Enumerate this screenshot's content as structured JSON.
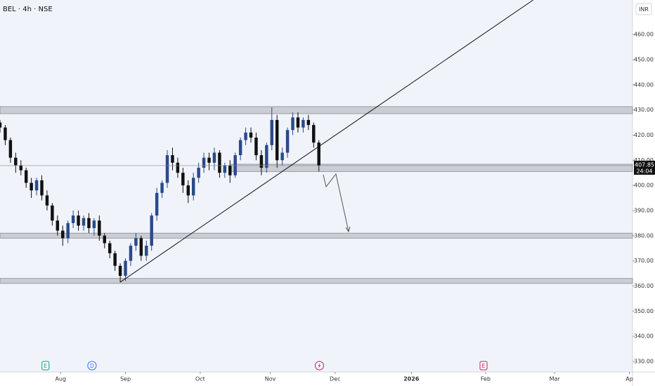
{
  "chart_data": {
    "type": "candlestick",
    "title": "BEL · 4h · NSE",
    "currency": "INR",
    "countdown": "24:04",
    "x": [
      0,
      1,
      2,
      3,
      4,
      5,
      6,
      7,
      8,
      9,
      10,
      11,
      12,
      13,
      14,
      15,
      16,
      17,
      18,
      19,
      20,
      21,
      22,
      23,
      24,
      25,
      26,
      27,
      28,
      29,
      30,
      31,
      32,
      33,
      34,
      35,
      36,
      37,
      38,
      39,
      40,
      41,
      42,
      43,
      44,
      45,
      46,
      47,
      48,
      49,
      50,
      51,
      52,
      53,
      54,
      55,
      56,
      57,
      58,
      59,
      60,
      61
    ],
    "open": [
      425,
      423,
      418,
      411,
      408,
      406,
      401,
      398,
      402,
      396,
      392,
      386,
      382,
      379,
      385,
      388,
      384,
      387,
      383,
      386,
      380,
      377,
      373,
      368,
      364,
      370,
      376,
      379,
      372,
      376,
      388,
      397,
      401,
      412,
      409,
      405,
      400,
      396,
      403,
      407,
      411,
      409,
      413,
      405,
      408,
      404,
      412,
      418,
      421,
      419,
      412,
      407,
      416,
      426,
      410,
      413,
      422,
      427,
      423,
      426,
      424,
      417
    ],
    "high": [
      426,
      424,
      419,
      413,
      410,
      407,
      403,
      403,
      404,
      398,
      393,
      388,
      384,
      386,
      390,
      390,
      388,
      389,
      387,
      388,
      381,
      378,
      374,
      369,
      371,
      377,
      381,
      380,
      378,
      389,
      399,
      402,
      414,
      415,
      411,
      407,
      402,
      405,
      409,
      413,
      413,
      415,
      414,
      409,
      410,
      413,
      419,
      423,
      423,
      421,
      414,
      417,
      431,
      428,
      415,
      423,
      429,
      429,
      427,
      428,
      425,
      418
    ],
    "low": [
      421,
      416,
      409,
      405,
      404,
      399,
      395,
      396,
      394,
      390,
      384,
      380,
      376,
      377,
      383,
      382,
      382,
      381,
      380,
      378,
      375,
      371,
      366,
      361.5,
      362,
      368,
      374,
      370,
      370,
      374,
      386,
      395,
      399,
      406,
      403,
      397,
      393,
      394,
      401,
      405,
      406,
      406,
      403,
      403,
      401,
      403,
      410,
      416,
      417,
      410,
      404,
      405,
      414,
      407,
      408,
      411,
      420,
      421,
      421,
      422,
      415,
      405.5
    ],
    "close": [
      423,
      418,
      411,
      408,
      406,
      401,
      398,
      402,
      396,
      392,
      386,
      382,
      379,
      385,
      388,
      384,
      387,
      383,
      386,
      380,
      377,
      373,
      368,
      364,
      370,
      376,
      379,
      372,
      376,
      388,
      397,
      401,
      412,
      409,
      405,
      400,
      396,
      403,
      407,
      411,
      409,
      413,
      405,
      408,
      404,
      412,
      418,
      421,
      419,
      412,
      407,
      416,
      426,
      410,
      413,
      422,
      427,
      423,
      426,
      424,
      417,
      407.85
    ],
    "up_color": "#2a4a8a",
    "down_color": "#111111",
    "xlim": [
      0,
      121
    ],
    "ylim": [
      325.8,
      473.7
    ],
    "xticks": [
      {
        "value": 11.6,
        "label": "Aug"
      },
      {
        "value": 24,
        "label": "Sep"
      },
      {
        "value": 38.3,
        "label": "Oct"
      },
      {
        "value": 51.7,
        "label": "Nov"
      },
      {
        "value": 64.1,
        "label": "Dec"
      },
      {
        "value": 78.7,
        "label": "2026"
      },
      {
        "value": 92.9,
        "label": "Feb"
      },
      {
        "value": 106.1,
        "label": "Mar"
      },
      {
        "value": 120.4,
        "label": "Ap"
      }
    ],
    "yticks": [
      {
        "value": 460,
        "label": "460.00"
      },
      {
        "value": 450,
        "label": "450.00"
      },
      {
        "value": 440,
        "label": "440.00"
      },
      {
        "value": 430,
        "label": "430.00"
      },
      {
        "value": 420,
        "label": "420.00"
      },
      {
        "value": 410,
        "label": "410.00"
      },
      {
        "value": 400,
        "label": "400.00"
      },
      {
        "value": 390,
        "label": "390.00"
      },
      {
        "value": 380,
        "label": "380.00"
      },
      {
        "value": 370,
        "label": "370.00"
      },
      {
        "value": 360,
        "label": "360.00"
      },
      {
        "value": 350,
        "label": "350.00"
      },
      {
        "value": 340,
        "label": "340.00"
      },
      {
        "value": 330,
        "label": "330.00"
      }
    ],
    "zones": [
      {
        "from": 428.5,
        "to": 431.3,
        "start": 0
      },
      {
        "from": 405.5,
        "to": 408.4,
        "start": 44
      },
      {
        "from": 379,
        "to": 381,
        "start": 0
      },
      {
        "from": 361,
        "to": 363,
        "start": 0
      }
    ],
    "trendline": [
      {
        "x": 23,
        "y": 361.5
      },
      {
        "x": 102,
        "y": 473.7
      }
    ],
    "events": [
      {
        "x": 8.7,
        "label": "E",
        "color": "#089981"
      },
      {
        "x": 17.6,
        "label": "D",
        "color": "#2962ff"
      },
      {
        "x": 61.1,
        "color": "#c2185b"
      },
      {
        "x": 92.5,
        "label": "E",
        "color": "#c2185b"
      }
    ]
  }
}
